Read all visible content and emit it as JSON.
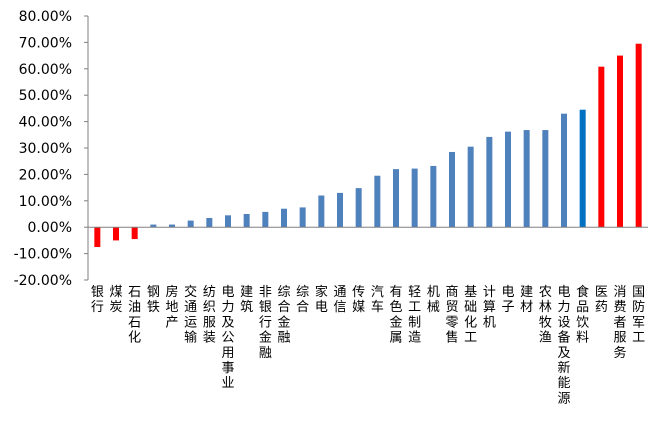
{
  "chart_data": {
    "type": "bar",
    "title": "",
    "xlabel": "",
    "ylabel": "",
    "ylim": [
      -0.2,
      0.8
    ],
    "y_ticks": [
      "-20.00%",
      "-10.00%",
      "0.00%",
      "10.00%",
      "20.00%",
      "30.00%",
      "40.00%",
      "50.00%",
      "60.00%",
      "70.00%",
      "80.00%"
    ],
    "y_tick_values": [
      -0.2,
      -0.1,
      0.0,
      0.1,
      0.2,
      0.3,
      0.4,
      0.5,
      0.6,
      0.7,
      0.8
    ],
    "grid": false,
    "legend": "none",
    "categories": [
      "银行",
      "煤炭",
      "石油石化",
      "钢铁",
      "房地产",
      "交通运输",
      "纺织服装",
      "电力及公用事业",
      "建筑",
      "非银行金融",
      "综合金融",
      "综合",
      "家电",
      "通信",
      "传媒",
      "汽车",
      "有色金属",
      "轻工制造",
      "机械",
      "商贸零售",
      "基础化工",
      "计算机",
      "电子",
      "建材",
      "农林牧渔",
      "电力设备及新能源",
      "食品饮料",
      "医药",
      "消费者服务",
      "国防军工"
    ],
    "values": [
      -0.075,
      -0.05,
      -0.045,
      0.01,
      0.01,
      0.025,
      0.035,
      0.045,
      0.05,
      0.058,
      0.07,
      0.075,
      0.12,
      0.13,
      0.148,
      0.195,
      0.22,
      0.222,
      0.232,
      0.285,
      0.305,
      0.342,
      0.362,
      0.368,
      0.368,
      0.43,
      0.445,
      0.608,
      0.65,
      0.695
    ],
    "bar_colors": [
      "#FF0000",
      "#FF0000",
      "#FF0000",
      "#4F81BD",
      "#4F81BD",
      "#4F81BD",
      "#4F81BD",
      "#4F81BD",
      "#4F81BD",
      "#4F81BD",
      "#4F81BD",
      "#4F81BD",
      "#4F81BD",
      "#4F81BD",
      "#4F81BD",
      "#4F81BD",
      "#4F81BD",
      "#4F81BD",
      "#4F81BD",
      "#4F81BD",
      "#4F81BD",
      "#4F81BD",
      "#4F81BD",
      "#4F81BD",
      "#4F81BD",
      "#4F81BD",
      "#0070C0",
      "#FF0000",
      "#FF0000",
      "#FF0000"
    ]
  }
}
